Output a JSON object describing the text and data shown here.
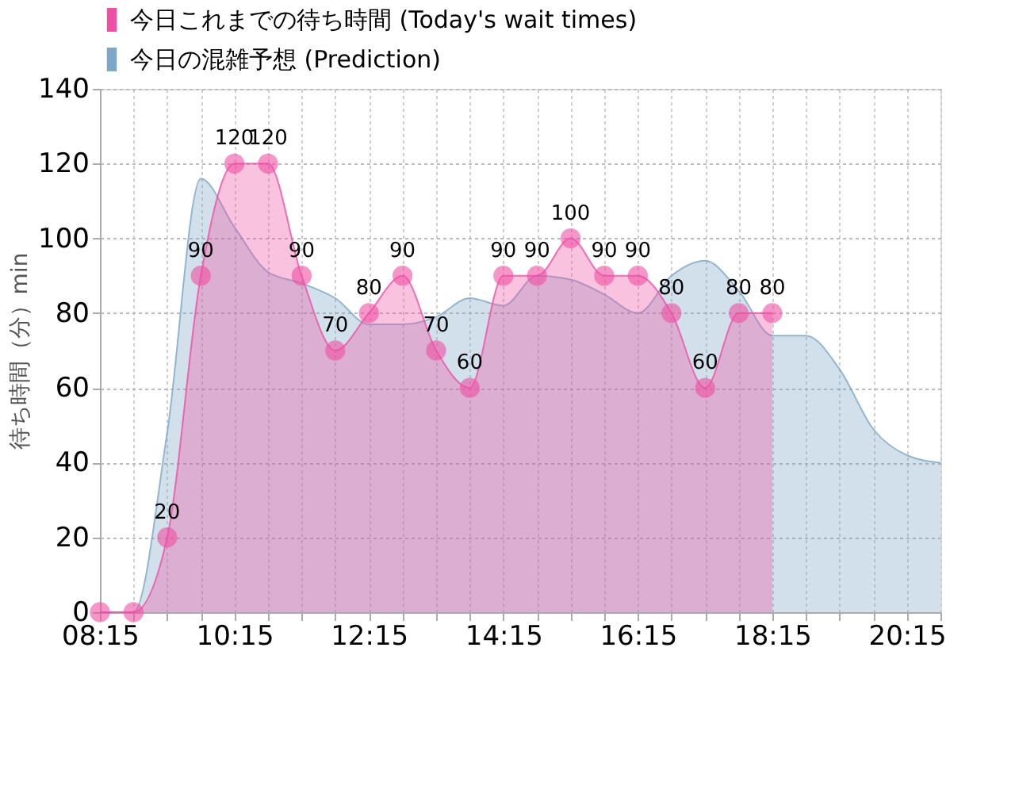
{
  "chart_data": {
    "type": "area",
    "ylabel": "待ち時間（分）min",
    "xlim": [
      8.25,
      20.75
    ],
    "ylim": [
      0,
      140
    ],
    "yticks": [
      0,
      20,
      40,
      60,
      80,
      100,
      120,
      140
    ],
    "xticks": [
      {
        "value": 8.25,
        "label": "08:15"
      },
      {
        "value": 8.75,
        "label": null
      },
      {
        "value": 9.25,
        "label": null
      },
      {
        "value": 9.75,
        "label": null
      },
      {
        "value": 10.25,
        "label": "10:15"
      },
      {
        "value": 10.75,
        "label": null
      },
      {
        "value": 11.25,
        "label": null
      },
      {
        "value": 11.75,
        "label": null
      },
      {
        "value": 12.25,
        "label": "12:15"
      },
      {
        "value": 12.75,
        "label": null
      },
      {
        "value": 13.25,
        "label": null
      },
      {
        "value": 13.75,
        "label": null
      },
      {
        "value": 14.25,
        "label": "14:15"
      },
      {
        "value": 14.75,
        "label": null
      },
      {
        "value": 15.25,
        "label": null
      },
      {
        "value": 15.75,
        "label": null
      },
      {
        "value": 16.25,
        "label": "16:15"
      },
      {
        "value": 16.75,
        "label": null
      },
      {
        "value": 17.25,
        "label": null
      },
      {
        "value": 17.75,
        "label": null
      },
      {
        "value": 18.25,
        "label": "18:15"
      },
      {
        "value": 18.75,
        "label": null
      },
      {
        "value": 19.25,
        "label": null
      },
      {
        "value": 19.75,
        "label": null
      },
      {
        "value": 20.25,
        "label": "20:15"
      },
      {
        "value": 20.75,
        "label": null
      }
    ],
    "grid": true,
    "legend": "top left",
    "line_style": "solid",
    "series": [
      {
        "name": "今日これまでの待ち時間 (Today's wait times)",
        "color": "#ee4fa4",
        "marker": "circle",
        "value_labels": [
          null,
          null,
          "20",
          "90",
          "120",
          "120",
          "90",
          "70",
          "80",
          "90",
          "70",
          "60",
          "90",
          "90",
          "100",
          "90",
          "90",
          "80",
          "60",
          "80",
          "80"
        ],
        "x": [
          8.25,
          8.75,
          9.25,
          9.75,
          10.25,
          10.75,
          11.25,
          11.75,
          12.25,
          12.75,
          13.25,
          13.75,
          14.25,
          14.75,
          15.25,
          15.75,
          16.25,
          16.75,
          17.25,
          17.75,
          18.25
        ],
        "values": [
          0,
          0,
          20,
          90,
          120,
          120,
          90,
          70,
          80,
          90,
          70,
          60,
          90,
          90,
          100,
          90,
          90,
          80,
          60,
          80,
          80
        ]
      },
      {
        "name": "今日の混雑予想 (Prediction)",
        "color": "#7fa6c6",
        "marker": "none",
        "x": [
          8.25,
          8.75,
          9.25,
          9.75,
          10.25,
          10.75,
          11.25,
          11.75,
          12.25,
          12.75,
          13.25,
          13.75,
          14.25,
          14.75,
          15.25,
          15.75,
          16.25,
          16.75,
          17.25,
          17.75,
          18.25,
          18.75,
          19.25,
          19.75,
          20.25,
          20.75
        ],
        "values": [
          0,
          0,
          48,
          116,
          103,
          91,
          88,
          84,
          77,
          77,
          79,
          84,
          82,
          90,
          89,
          85,
          80,
          90,
          94,
          86,
          74,
          74,
          65,
          49,
          42,
          40
        ]
      }
    ]
  }
}
